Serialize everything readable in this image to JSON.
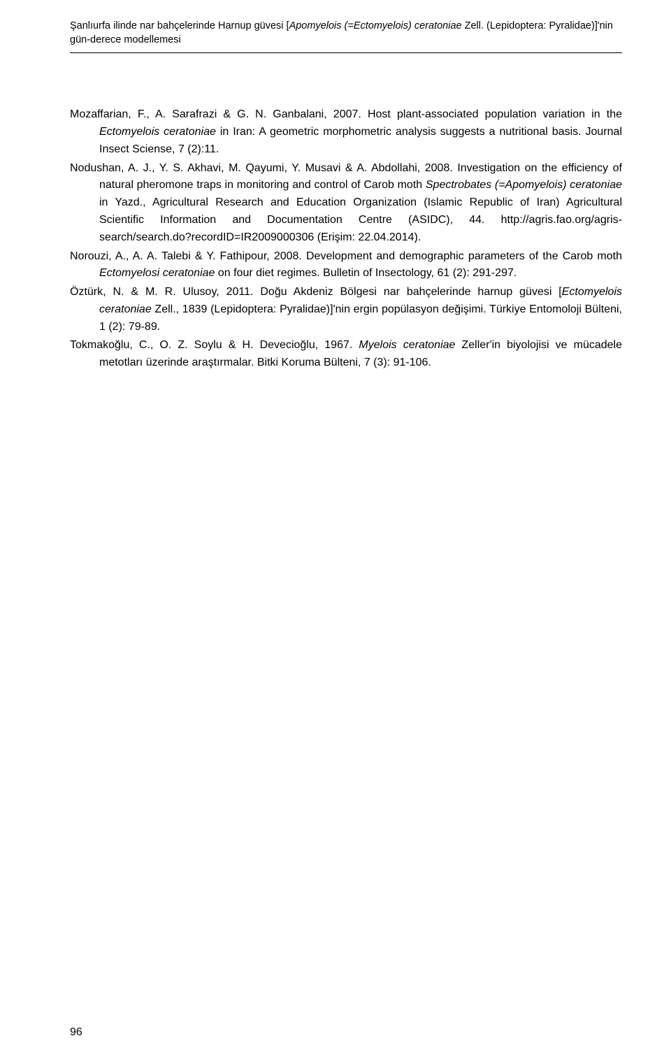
{
  "header": {
    "line1": "Şanlıurfa ilinde nar bahçelerinde Harnup güvesi [",
    "line1_italic": "Apomyelois (=Ectomyelois) ceratoniae",
    "line1_end": " Zell. (Lepidoptera: Pyralidae)]'nin",
    "line2": "gün-derece modellemesi"
  },
  "references": [
    {
      "plain1": "Mozaffarian, F., A. Sarafrazi & G. N. Ganbalani, 2007. Host plant-associated population variation in the ",
      "italic1": "Ectomyelois ceratoniae",
      "plain2": " in Iran: A geometric morphometric analysis suggests a nutritional basis. Journal Insect Sciense, 7 (2):11."
    },
    {
      "plain1": "Nodushan, A. J., Y. S. Akhavi, M. Qayumi, Y. Musavi & A. Abdollahi, 2008. Investigation on the efficiency of natural pheromone traps in monitoring and control of Carob moth ",
      "italic1": "Spectrobates (=Apomyelois) ceratoniae",
      "plain2": " in Yazd., Agricultural Research and Education Organization (Islamic Republic of Iran) Agricultural Scientific Information and Documentation Centre (ASIDC), 44. http://agris.fao.org/agris-search/search.do?recordID=IR2009000306 (Erişim: 22.04.2014)."
    },
    {
      "plain1": "Norouzi, A., A. A. Talebi & Y. Fathipour, 2008. Development and demographic parameters of the Carob moth ",
      "italic1": "Ectomyelosi ceratoniae",
      "plain2": " on four diet regimes. Bulletin of Insectology, 61 (2): 291-297."
    },
    {
      "plain1": "Öztürk, N. & M. R. Ulusoy, 2011. Doğu Akdeniz Bölgesi nar bahçelerinde harnup güvesi [",
      "italic1": "Ectomyelois ceratoniae",
      "plain2": " Zell., 1839 (Lepidoptera: Pyralidae)]'nin ergin popülasyon değişimi. Türkiye Entomoloji Bülteni, 1 (2): 79-89."
    },
    {
      "plain1": "Tokmakoğlu, C., O. Z. Soylu & H. Devecioğlu, 1967. ",
      "italic1": "Myelois ceratoniae",
      "plain2": " Zeller'in biyolojisi ve mücadele metotları üzerinde araştırmalar. Bitki Koruma Bülteni, 7 (3): 91-106."
    }
  ],
  "page_number": "96"
}
